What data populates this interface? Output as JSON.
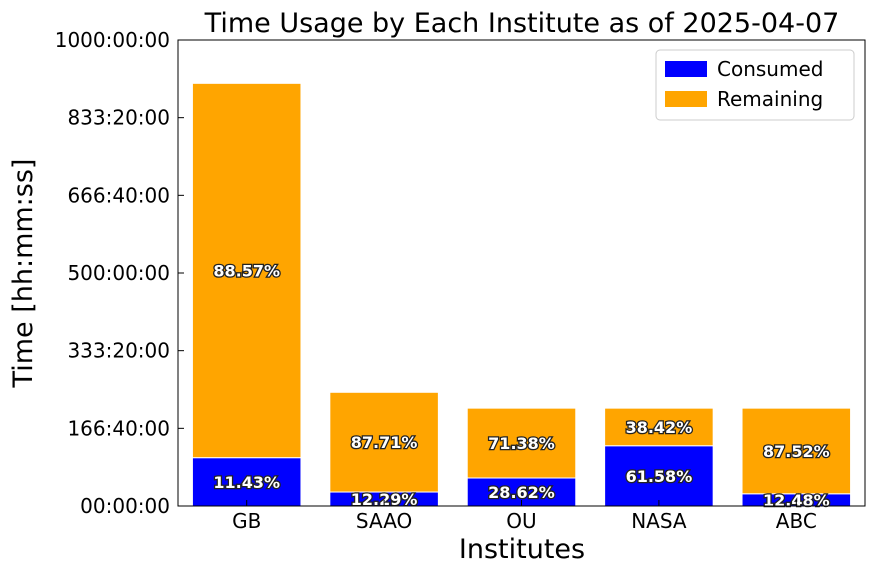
{
  "chart_data": {
    "type": "bar",
    "stacked": true,
    "title": "Time Usage by Each Institute as of 2025-04-07",
    "xlabel": "Institutes",
    "ylabel": "Time [hh:mm:ss]",
    "ylim": [
      0,
      1000
    ],
    "yunit": "hours",
    "yticks": [
      0,
      166.6667,
      333.3333,
      500,
      666.6667,
      833.3333,
      1000
    ],
    "ytick_labels": [
      "00:00:00",
      "166:40:00",
      "333:20:00",
      "500:00:00",
      "666:40:00",
      "833:20:00",
      "1000:00:00"
    ],
    "categories": [
      "GB",
      "SAAO",
      "OU",
      "NASA",
      "ABC"
    ],
    "totals": [
      907,
      244,
      210,
      210,
      210
    ],
    "series": [
      {
        "name": "Consumed",
        "color": "#0000ff",
        "values": [
          103.7,
          30.0,
          60.1,
          129.3,
          26.2
        ],
        "labels": [
          "11.43%",
          "12.29%",
          "28.62%",
          "61.58%",
          "12.48%"
        ]
      },
      {
        "name": "Remaining",
        "color": "#ffa500",
        "values": [
          803.3,
          214.0,
          149.9,
          80.7,
          183.8
        ],
        "labels": [
          "88.57%",
          "87.71%",
          "71.38%",
          "38.42%",
          "87.52%"
        ]
      }
    ],
    "legend_position": "top-right",
    "grid": false
  }
}
